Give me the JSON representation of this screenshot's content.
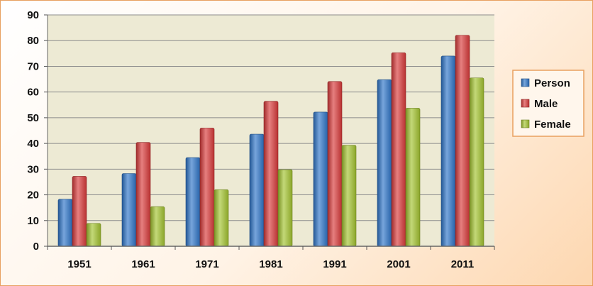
{
  "chart_data": {
    "type": "bar",
    "categories": [
      "1951",
      "1961",
      "1971",
      "1981",
      "1991",
      "2001",
      "2011"
    ],
    "series": [
      {
        "name": "Person",
        "values": [
          18.3,
          28.3,
          34.5,
          43.6,
          52.2,
          64.8,
          74.0
        ]
      },
      {
        "name": "Male",
        "values": [
          27.2,
          40.4,
          46.0,
          56.4,
          64.1,
          75.3,
          82.1
        ]
      },
      {
        "name": "Female",
        "values": [
          8.9,
          15.4,
          22.0,
          29.8,
          39.3,
          53.7,
          65.5
        ]
      }
    ],
    "ylim": [
      0,
      90
    ],
    "yticks": [
      0,
      10,
      20,
      30,
      40,
      50,
      60,
      70,
      80,
      90
    ],
    "grid": true,
    "legend_position": "right",
    "colors": {
      "Person": "#2E75C8",
      "Male": "#D83A3A",
      "Female": "#A3C330",
      "plot_background": "#EDEAD4",
      "gridline": "#8C8C8C"
    }
  }
}
